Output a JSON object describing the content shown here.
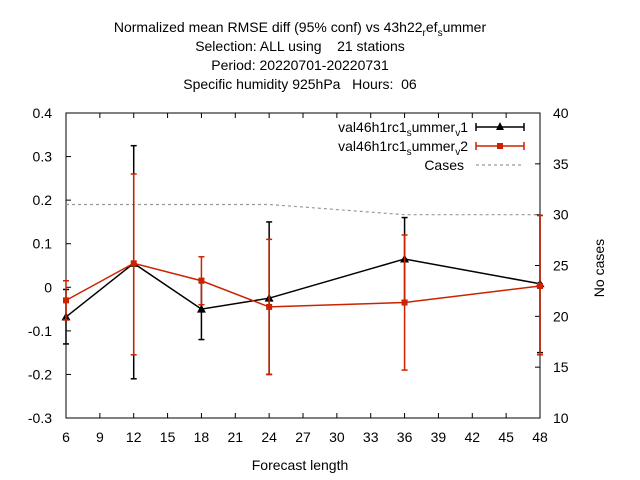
{
  "chart_data": {
    "type": "line",
    "title_lines": [
      "Normalized mean RMSE diff (95% conf) vs 43h22_ref_s_ummer",
      "Selection: ALL using    21 stations",
      "Period: 20220701-20220731",
      "Specific humidity 925hPa   Hours:  06"
    ],
    "xlabel": "Forecast length",
    "ylabel": "",
    "y2label": "No cases",
    "xlim": [
      6,
      48
    ],
    "ylim": [
      -0.3,
      0.4
    ],
    "y2lim": [
      10,
      40
    ],
    "xticks": [
      6,
      9,
      12,
      15,
      18,
      21,
      24,
      27,
      30,
      33,
      36,
      39,
      42,
      45,
      48
    ],
    "yticks": [
      -0.3,
      -0.2,
      -0.1,
      0,
      0.1,
      0.2,
      0.3,
      0.4
    ],
    "yticklabels": [
      "-0.3",
      "-0.2",
      "-0.1",
      "0",
      "0.1",
      "0.2",
      "0.3",
      "0.4"
    ],
    "y2ticks": [
      10,
      15,
      20,
      25,
      30,
      35,
      40
    ],
    "grid": false,
    "legend_position": "top-right",
    "series": [
      {
        "name": "val46h1rc1_s_ummer_v1",
        "axis": "left",
        "color": "#000000",
        "marker": "triangle",
        "x": [
          6,
          12,
          18,
          24,
          36,
          48
        ],
        "y": [
          -0.068,
          0.055,
          -0.05,
          -0.025,
          0.065,
          0.008
        ],
        "err_low": [
          -0.13,
          -0.21,
          -0.12,
          -0.2,
          -0.03,
          -0.15
        ],
        "err_high": [
          -0.005,
          0.325,
          0.02,
          0.15,
          0.16,
          0.165
        ]
      },
      {
        "name": "val46h1rc1_s_ummer_v2",
        "axis": "left",
        "color": "#cc2200",
        "marker": "square",
        "x": [
          6,
          12,
          18,
          24,
          36,
          48
        ],
        "y": [
          -0.03,
          0.055,
          0.015,
          -0.045,
          -0.035,
          0.003
        ],
        "err_low": [
          -0.075,
          -0.155,
          -0.04,
          -0.2,
          -0.19,
          -0.155
        ],
        "err_high": [
          0.015,
          0.26,
          0.07,
          0.11,
          0.12,
          0.165
        ]
      },
      {
        "name": "Cases",
        "axis": "right",
        "color": "#999999",
        "style": "dashed",
        "x": [
          6,
          12,
          18,
          24,
          30,
          36,
          42,
          48
        ],
        "y": [
          31,
          31,
          31,
          31,
          30.5,
          30,
          30,
          30
        ]
      }
    ]
  },
  "legend": {
    "v1": {
      "base": "val46h1rc1",
      "s": "s",
      "mid": "ummer",
      "v": "v",
      "n": "1"
    },
    "v2": {
      "base": "val46h1rc1",
      "s": "s",
      "mid": "ummer",
      "v": "v",
      "n": "2"
    },
    "cases": "Cases"
  },
  "title": {
    "line1": {
      "a": "Normalized mean RMSE diff (95% conf) vs 43h22",
      "r": "r",
      "ef": "ef",
      "s": "s",
      "ummer": "ummer"
    },
    "line2": "Selection: ALL using    21 stations",
    "line3": "Period: 20220701-20220731",
    "line4": "Specific humidity 925hPa   Hours:  06"
  }
}
